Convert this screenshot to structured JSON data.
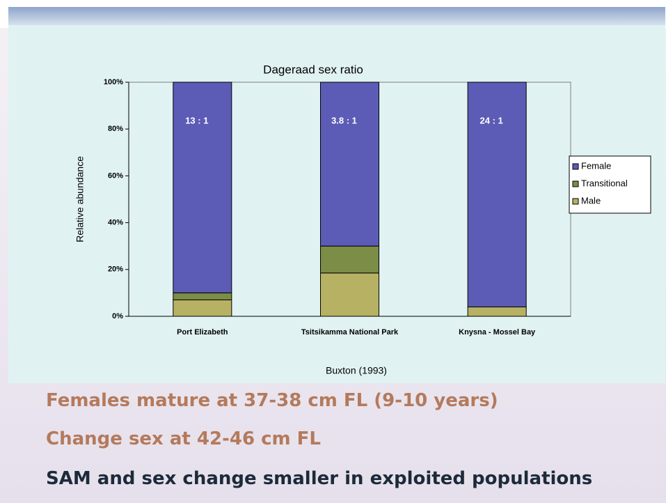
{
  "chart_data": {
    "type": "stacked_bar",
    "title": "Dageraad sex ratio",
    "y_label": "Relative abundance",
    "source": "Buxton (1993)",
    "categories": [
      "Port Elizabeth",
      "Tsitsikamma National Park",
      "Knysna - Mossel Bay"
    ],
    "series": [
      {
        "name": "Male",
        "color": "#b7b263",
        "values": [
          7,
          18.5,
          4
        ]
      },
      {
        "name": "Transitional",
        "color": "#7b8d46",
        "values": [
          3,
          11.5,
          0
        ]
      },
      {
        "name": "Female",
        "color": "#5c5cb6",
        "values": [
          90,
          70,
          96
        ]
      }
    ],
    "annotations": [
      "13 : 1",
      "3.8 : 1",
      "24 : 1"
    ],
    "ylim": [
      0,
      100
    ],
    "yticks": [
      {
        "value": 0,
        "label": "0%"
      },
      {
        "value": 20,
        "label": "20%"
      },
      {
        "value": 40,
        "label": "40%"
      },
      {
        "value": 60,
        "label": "60%"
      },
      {
        "value": 80,
        "label": "80%"
      },
      {
        "value": 100,
        "label": "100%"
      }
    ],
    "legend": "right"
  },
  "bullets": [
    "Females mature at 37-38 cm FL (9-10 years)",
    "Change sex at 42-46 cm FL",
    "SAM and sex change smaller in exploited populations"
  ]
}
